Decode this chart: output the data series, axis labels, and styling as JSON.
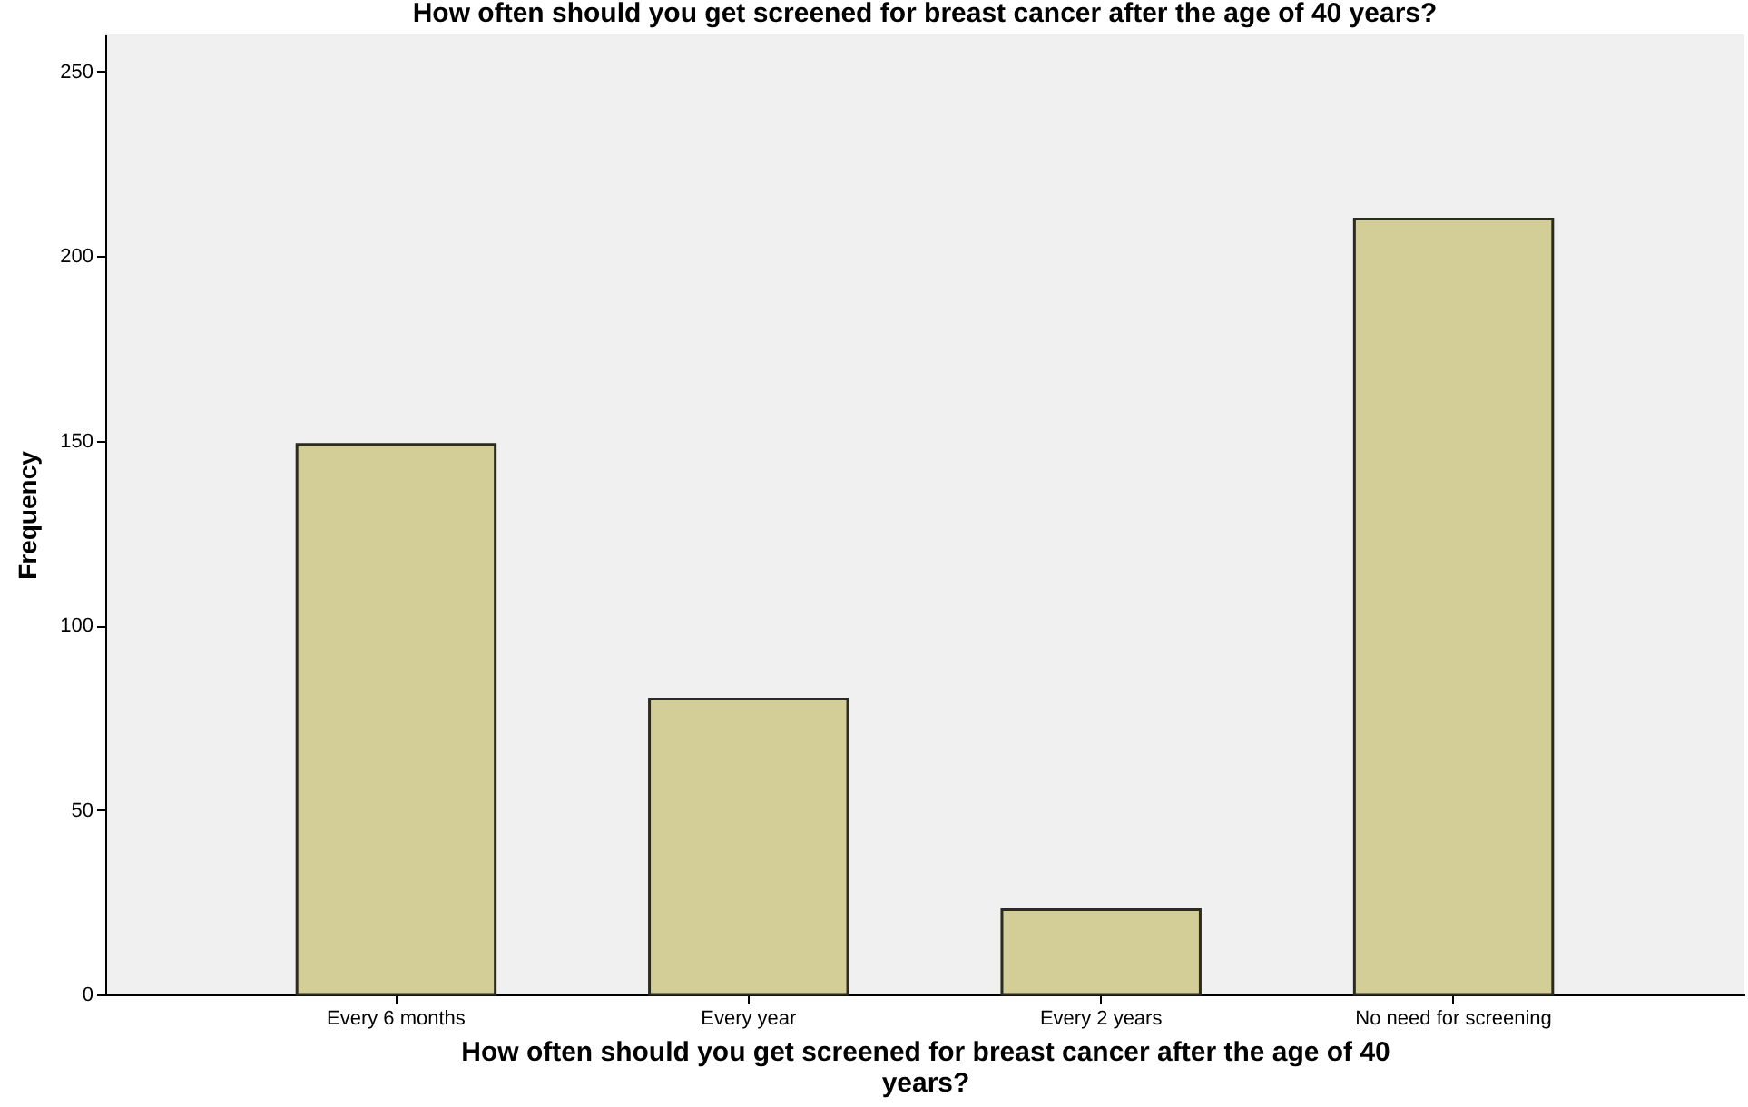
{
  "chart_data": {
    "type": "bar",
    "title": "How often should you get screened for breast cancer after the age of 40 years?",
    "xlabel": "How often should you get screened for breast cancer after the age of 40 years?",
    "ylabel": "Frequency",
    "categories": [
      "Every 6 months",
      "Every year",
      "Every 2 years",
      "No need for screening"
    ],
    "values": [
      149,
      80,
      23,
      210
    ],
    "color": "#d3ce97",
    "ylim": [
      0,
      260
    ],
    "yticks": [
      0,
      50,
      100,
      150,
      200,
      250
    ],
    "grid": false
  }
}
